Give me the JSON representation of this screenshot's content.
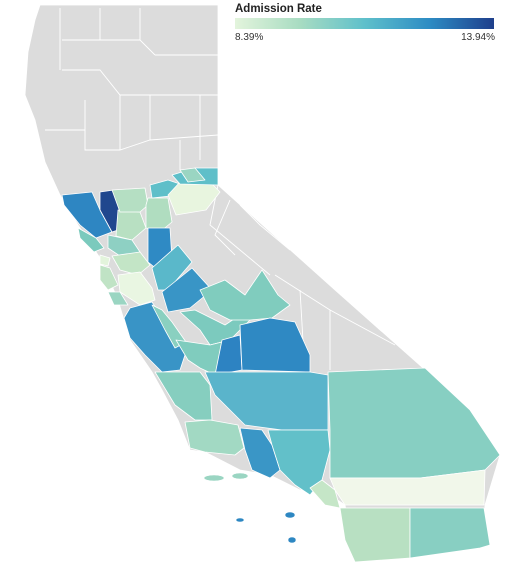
{
  "legend": {
    "title": "Admission Rate",
    "min_label": "8.39%",
    "max_label": "13.94%",
    "color_low": "#e3f4dc",
    "color_high": "#1f3f8c"
  },
  "colors": {
    "no_data": "#dcdcdc",
    "border": "#ffffff"
  },
  "regions": [
    {
      "name": "sonoma-county",
      "color": "#2e86c2"
    },
    {
      "name": "napa-county",
      "color": "#20478e"
    },
    {
      "name": "marin-county",
      "color": "#7bcabd"
    },
    {
      "name": "solano-county",
      "color": "#b8e0c2"
    },
    {
      "name": "sacramento-county",
      "color": "#b0ddc0"
    },
    {
      "name": "placer-county",
      "color": "#5fbfc9"
    },
    {
      "name": "el-dorado-county",
      "color": "#e8f5df"
    },
    {
      "name": "yolo-county",
      "color": "#b5dfc3"
    },
    {
      "name": "contra-costa-county",
      "color": "#8ed0c3"
    },
    {
      "name": "alameda-county",
      "color": "#c3e5c6"
    },
    {
      "name": "san-francisco-county",
      "color": "#e3f4dc"
    },
    {
      "name": "san-joaquin-county",
      "color": "#2f8ac4"
    },
    {
      "name": "stanislaus-county",
      "color": "#5ab8ca"
    },
    {
      "name": "santa-clara-county",
      "color": "#e9f6e2"
    },
    {
      "name": "san-mateo-county",
      "color": "#c0e3c5"
    },
    {
      "name": "merced-county",
      "color": "#3995c6"
    },
    {
      "name": "madera-county",
      "color": "#7ccabe"
    },
    {
      "name": "mariposa-county",
      "color": "#80ccbe"
    },
    {
      "name": "santa-cruz-county",
      "color": "#9ad5c2"
    },
    {
      "name": "monterey-county",
      "color": "#3994c6"
    },
    {
      "name": "san-benito-county",
      "color": "#8ad0c0"
    },
    {
      "name": "fresno-county",
      "color": "#80ccbe"
    },
    {
      "name": "kings-county",
      "color": "#2d83c2"
    },
    {
      "name": "tulare-county",
      "color": "#2f89c3"
    },
    {
      "name": "san-luis-obispo-county",
      "color": "#86cebf"
    },
    {
      "name": "kern-county",
      "color": "#5ab4cb"
    },
    {
      "name": "santa-barbara-county",
      "color": "#a2d9c3"
    },
    {
      "name": "ventura-county",
      "color": "#3a96c6"
    },
    {
      "name": "los-angeles-county",
      "color": "#62c0c9"
    },
    {
      "name": "san-bernardino-county",
      "color": "#87cfc2"
    },
    {
      "name": "orange-county",
      "color": "#c5e6c7"
    },
    {
      "name": "riverside-county",
      "color": "#f1f7ea"
    },
    {
      "name": "san-diego-county",
      "color": "#b8e0c2"
    },
    {
      "name": "imperial-county",
      "color": "#88cfc2"
    },
    {
      "name": "mono-county",
      "color": "#9ad5c2"
    },
    {
      "name": "channel-islands",
      "color": "#9ad5c2"
    },
    {
      "name": "southern-islands",
      "color": "#2d87c2"
    }
  ]
}
